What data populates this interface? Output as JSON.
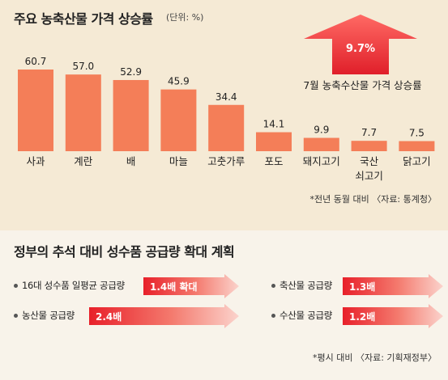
{
  "title": "주요 농축산물 가격 상승률",
  "unit": "(단위: %)",
  "highlight": {
    "value": "9.7%",
    "caption": "7월 농축수산물 가격 상승률"
  },
  "chart_note": "*전년 동월 대비 〈자료: 통계청〉",
  "chart_data": {
    "type": "bar",
    "title": "주요 농축산물 가격 상승률",
    "ylabel": "(단위: %)",
    "categories": [
      "사과",
      "계란",
      "배",
      "마늘",
      "고춧가루",
      "포도",
      "돼지고기",
      "국산 쇠고기",
      "닭고기"
    ],
    "category_lines": [
      [
        "사과"
      ],
      [
        "계란"
      ],
      [
        "배"
      ],
      [
        "마늘"
      ],
      [
        "고춧가루"
      ],
      [
        "포도"
      ],
      [
        "돼지고기"
      ],
      [
        "국산",
        "쇠고기"
      ],
      [
        "닭고기"
      ]
    ],
    "values": [
      60.7,
      57.0,
      52.9,
      45.9,
      34.4,
      14.1,
      9.9,
      7.7,
      7.5
    ],
    "value_labels": [
      "60.7",
      "57.0",
      "52.9",
      "45.9",
      "34.4",
      "14.1",
      "9.9",
      "7.7",
      "7.5"
    ],
    "ylim": [
      0,
      60.7
    ],
    "grid": false,
    "bar_color": "#f47e58"
  },
  "plan": {
    "title": "정부의 추석 대비 성수품 공급량 확대 계획",
    "items": [
      {
        "label": "16대 성수품 일평균 공급량",
        "value": "1.4배 확대"
      },
      {
        "label": "농산물 공급량",
        "value": "2.4배"
      },
      {
        "label": "축산물 공급량",
        "value": "1.3배"
      },
      {
        "label": "수산물 공급량",
        "value": "1.2배"
      }
    ],
    "footnote": "*평시 대비 〈자료: 기획재정부〉"
  },
  "colors": {
    "bar": "#f47e58",
    "arrow_dark": "#e8202a",
    "arrow_light": "#f9c9c1"
  }
}
